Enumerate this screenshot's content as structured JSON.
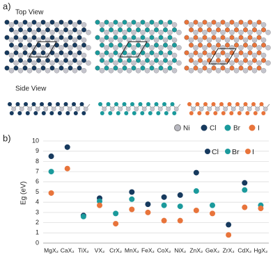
{
  "panel_a": {
    "label": "a)",
    "top_view": "Top View",
    "side_view": "Side View",
    "legend": [
      "Ni",
      "Cl",
      "Br",
      "I"
    ]
  },
  "chart_data": {
    "type": "scatter",
    "label": "b)",
    "ylabel": "Eg (eV)",
    "categories": [
      "MgX₂",
      "CaX₂",
      "TiX₂",
      "VX₂",
      "CrX₂",
      "MnX₂",
      "FeX₂",
      "CoX₂",
      "NiX₂",
      "ZnX₂",
      "GeX₂",
      "ZrX₂",
      "CdX₂",
      "HgX₂"
    ],
    "series": [
      {
        "name": "Cl",
        "color": "#173a5e",
        "values": [
          8.5,
          9.4,
          2.7,
          4.4,
          null,
          5.0,
          3.8,
          4.5,
          4.7,
          6.9,
          null,
          1.8,
          5.9,
          null
        ]
      },
      {
        "name": "Br",
        "color": "#1b9a9c",
        "values": [
          7.0,
          null,
          2.6,
          4.1,
          2.9,
          4.3,
          null,
          3.7,
          3.6,
          5.1,
          3.7,
          null,
          5.2,
          3.7
        ]
      },
      {
        "name": "I",
        "color": "#e8743b",
        "values": [
          4.9,
          7.3,
          null,
          3.7,
          1.9,
          3.3,
          3.0,
          2.2,
          2.2,
          3.2,
          2.9,
          0.8,
          3.5,
          3.4
        ]
      }
    ],
    "ylim": [
      0,
      10
    ],
    "yticks": [
      0,
      1,
      2,
      3,
      4,
      5,
      6,
      7,
      8,
      9,
      10
    ],
    "grid": true,
    "legend": "top-right"
  }
}
